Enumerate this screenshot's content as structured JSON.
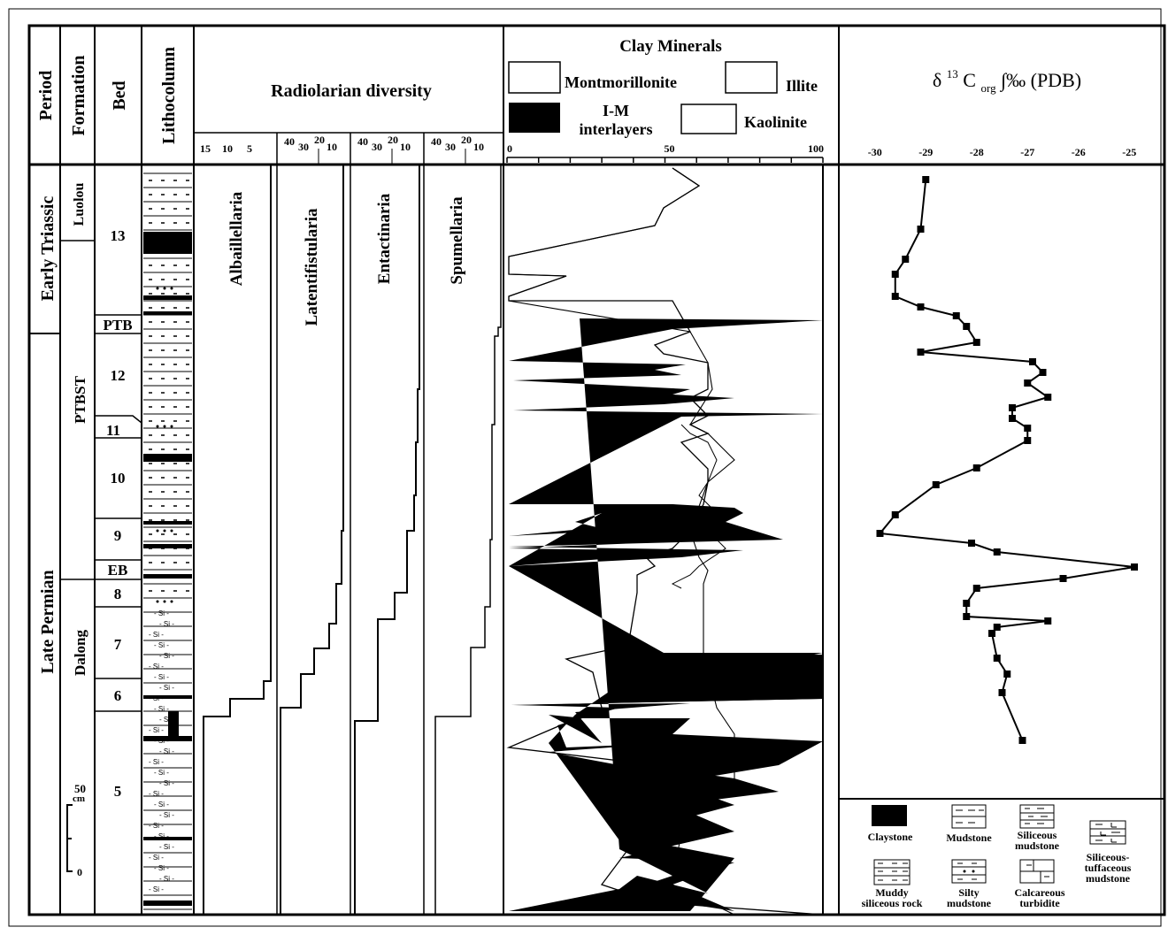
{
  "header": {
    "period": "Period",
    "formation": "Formation",
    "bed": "Bed",
    "lithocolumn": "Lithocolumn",
    "radiolarian_diversity": "Radiolarian diversity",
    "clay_minerals": "Clay Minerals",
    "carbon_isotope_symbol": "δ",
    "carbon_isotope_mass": "13",
    "carbon_isotope_C": " C",
    "carbon_isotope_sub": "org",
    "carbon_isotope_unit": "∫‰ (PDB)"
  },
  "clay_legend": {
    "montmorillonite": "Montmorillonite",
    "illite": "Illite",
    "im_line1": "I-M",
    "im_line2": "interlayers",
    "kaolinite": "Kaolinite"
  },
  "periods": [
    "Early Triassic",
    "Late Permian"
  ],
  "formations": [
    "Luolou",
    "PTBST",
    "Dalong"
  ],
  "beds": [
    "13",
    "PTB",
    "12",
    "11",
    "10",
    "9",
    "EB",
    "8",
    "7",
    "6",
    "5"
  ],
  "scale_bar": {
    "top": "50",
    "unit": "cm",
    "bottom": "0"
  },
  "radiolarian_groups": [
    "Albaillellaria",
    "Latentifistularia",
    "Entactinaria",
    "Spumellaria"
  ],
  "radiolarian_ticks": {
    "albaillellaria": [
      "15",
      "10",
      "5"
    ],
    "others": [
      "40",
      "30",
      "20",
      "10"
    ]
  },
  "clay_ticks": [
    "0",
    "50",
    "100"
  ],
  "isotope_ticks": [
    "-30",
    "-29",
    "-28",
    "-27",
    "-26",
    "-25"
  ],
  "rock_legend": {
    "claystone": "Claystone",
    "mudstone": "Mudstone",
    "siliceous_mudstone_1": "Siliceous",
    "siliceous_mudstone_2": "mudstone",
    "siliceous_tuff_1": "Siliceous-",
    "siliceous_tuff_2": "tuffaceous",
    "siliceous_tuff_3": "mudstone",
    "muddy_siliceous_1": "Muddy",
    "muddy_siliceous_2": "siliceous rock",
    "silty_mudstone_1": "Silty",
    "silty_mudstone_2": "mudstone",
    "calcareous_turbidite_1": "Calcareous",
    "calcareous_turbidite_2": "turbidite"
  },
  "lithology_marks": {
    "si": "Si"
  },
  "colors": {
    "ink": "#000000",
    "paper": "#ffffff"
  },
  "chart_data": {
    "type": "line",
    "xlabel": "δ13Corg ‰ (PDB)",
    "xlim": [
      -30.5,
      -24.5
    ],
    "y_axis": "stratigraphic position (top to bottom)",
    "values_top_to_bottom": [
      -29.0,
      -29.1,
      -29.4,
      -29.6,
      -29.6,
      -29.1,
      -28.4,
      -28.2,
      -28.0,
      -29.1,
      -26.9,
      -26.7,
      -27.0,
      -26.6,
      -27.3,
      -27.3,
      -27.0,
      -27.0,
      -28.0,
      -28.8,
      -29.6,
      -29.9,
      -28.1,
      -27.6,
      -24.9,
      -26.3,
      -28.0,
      -28.2,
      -28.2,
      -26.6,
      -27.6,
      -27.7,
      -27.6,
      -27.4,
      -27.5,
      -27.1,
      -27.1
    ]
  }
}
